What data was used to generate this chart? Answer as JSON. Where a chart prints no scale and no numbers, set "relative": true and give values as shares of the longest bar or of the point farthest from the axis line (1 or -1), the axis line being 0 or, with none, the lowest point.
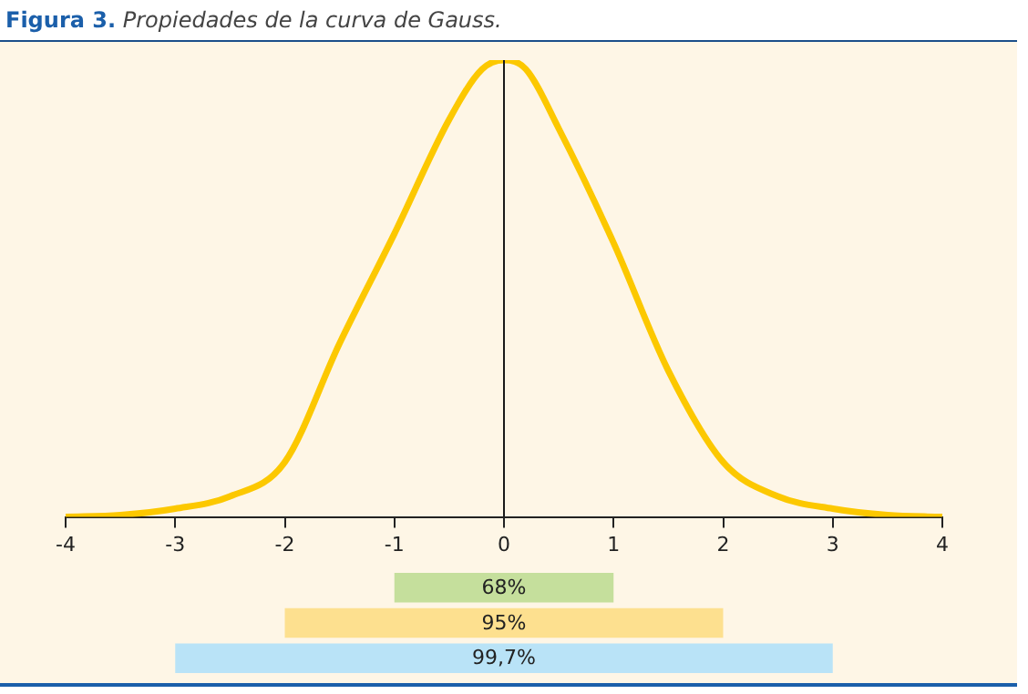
{
  "chart_data": [
    {
      "type": "line",
      "title": "Figura 3. Propiedades de la curva de Gauss.",
      "relative": true,
      "x": [
        -4,
        -3.5,
        -3,
        -2.5,
        -2,
        -1.5,
        -1,
        -0.5,
        -0.2,
        0,
        0.2,
        0.5,
        1,
        1.5,
        2,
        2.5,
        3,
        3.5,
        4
      ],
      "series": [
        {
          "color": "#fcc800",
          "values": [
            0,
            0.004,
            0.018,
            0.045,
            0.12,
            0.38,
            0.62,
            0.87,
            0.98,
            1,
            0.98,
            0.85,
            0.6,
            0.32,
            0.12,
            0.045,
            0.018,
            0.004,
            0
          ]
        }
      ],
      "xlim": [
        -4,
        4
      ],
      "xticks": [
        -4,
        -3,
        -2,
        -1,
        0,
        1,
        2,
        3,
        4
      ],
      "ref_lines": [
        {
          "axis": "x",
          "value": 0,
          "color": "#1a1a1a"
        }
      ],
      "grid": false,
      "legend": false,
      "marker": "none",
      "line_style": "solid"
    },
    {
      "type": "bar",
      "orientation": "horizontal",
      "categories": [
        null,
        null,
        null
      ],
      "values": [
        2,
        4,
        6
      ],
      "base": [
        -1,
        -2,
        -3
      ],
      "colors": [
        "#c5df9c",
        "#fde08f",
        "#b9e3f7"
      ],
      "annotations": [
        "68%",
        "95%",
        "99,7%"
      ],
      "xlim": [
        -4,
        4
      ],
      "tick_labels": false,
      "grid": false,
      "legend": false
    }
  ]
}
